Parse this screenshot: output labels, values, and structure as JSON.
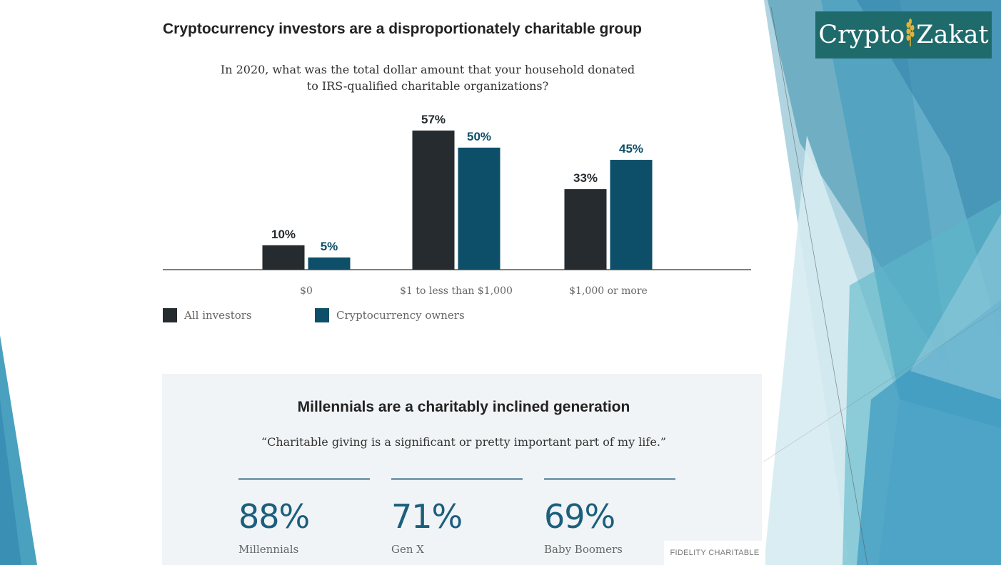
{
  "chart_data": {
    "type": "bar",
    "title": "Cryptocurrency investors are a disproportionately charitable group",
    "subtitle": "In 2020, what was the total dollar amount that your household donated to IRS-qualified charitable organizations?",
    "categories": [
      "$0",
      "$1 to less than $1,000",
      "$1,000 or more"
    ],
    "series": [
      {
        "name": "All investors",
        "values": [
          10,
          57,
          33
        ],
        "labels": [
          "10%",
          "57%",
          "33%"
        ],
        "color": "#262b2f",
        "label_color": "#262b2f"
      },
      {
        "name": "Cryptocurrency owners",
        "values": [
          5,
          50,
          45
        ],
        "labels": [
          "5%",
          "50%",
          "45%"
        ],
        "color": "#0d4f68",
        "label_color": "#0d4f68"
      }
    ],
    "ylim": [
      0,
      57
    ],
    "grid": false,
    "legend": "bottom-left"
  },
  "subtitle_lines": [
    "In 2020, what was the total dollar amount that your household donated",
    "to IRS-qualified charitable organizations?"
  ],
  "panel": {
    "title": "Millennials are a charitably inclined generation",
    "quote": "“Charitable giving is a significant or pretty important part of my life.”",
    "stats": [
      {
        "value": "88%",
        "label": "Millennials"
      },
      {
        "value": "71%",
        "label": "Gen X"
      },
      {
        "value": "69%",
        "label": "Baby Boomers"
      }
    ],
    "source": "FIDELITY CHARITABLE"
  },
  "logo": {
    "text_left": "Crypto",
    "text_right": "Zakat",
    "icon": "wheat-icon"
  },
  "colors": {
    "accent_teal": "#1b5f7c",
    "logo_bg": "#1f6b6c",
    "wheat": "#e2b33a"
  }
}
